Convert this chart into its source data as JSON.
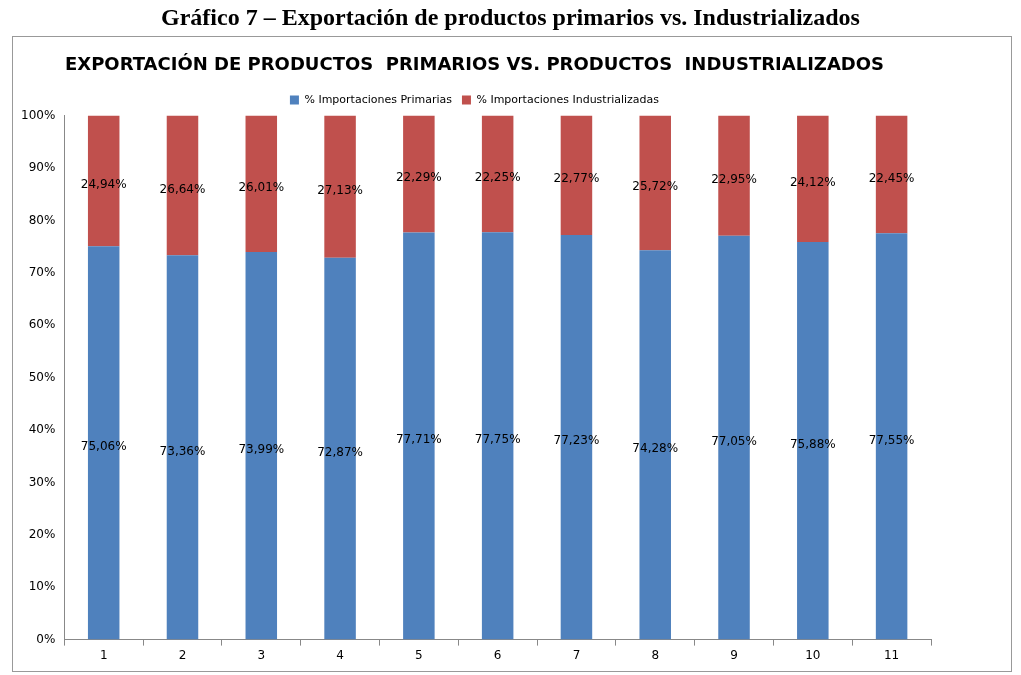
{
  "chart_data": {
    "type": "bar",
    "stacked": true,
    "title": "EXPORTACIÓN DE PRODUCTOS  PRIMARIOS VS. PRODUCTOS  INDUSTRIALIZADOS",
    "annotations": [
      "Gráfico 7 – Exportación de productos primarios vs. Industrializados"
    ],
    "categories": [
      "1",
      "2",
      "3",
      "4",
      "5",
      "6",
      "7",
      "8",
      "9",
      "10",
      "11"
    ],
    "series": [
      {
        "name": "% Importaciones Primarias",
        "color": "#4f81bd",
        "values": [
          75.06,
          73.36,
          73.99,
          72.87,
          77.71,
          77.75,
          77.23,
          74.28,
          77.05,
          75.88,
          77.55
        ],
        "value_labels": [
          "75,06%",
          "73,36%",
          "73,99%",
          "72,87%",
          "77,71%",
          "77,75%",
          "77,23%",
          "74,28%",
          "77,05%",
          "75,88%",
          "77,55%"
        ]
      },
      {
        "name": "% Importaciones Industrializadas",
        "color": "#c0504d",
        "values": [
          24.94,
          26.64,
          26.01,
          27.13,
          22.29,
          22.25,
          22.77,
          25.72,
          22.95,
          24.12,
          22.45
        ],
        "value_labels": [
          "24,94%",
          "26,64%",
          "26,01%",
          "27,13%",
          "22,29%",
          "22,25%",
          "22,77%",
          "25,72%",
          "22,95%",
          "24,12%",
          "22,45%"
        ]
      }
    ],
    "ylim": [
      0,
      100
    ],
    "yticks": [
      {
        "value": 0,
        "label": "0%"
      },
      {
        "value": 10,
        "label": "10%"
      },
      {
        "value": 20,
        "label": "20%"
      },
      {
        "value": 30,
        "label": "30%"
      },
      {
        "value": 40,
        "label": "40%"
      },
      {
        "value": 50,
        "label": "50%"
      },
      {
        "value": 60,
        "label": "60%"
      },
      {
        "value": 70,
        "label": "70%"
      },
      {
        "value": 80,
        "label": "80%"
      },
      {
        "value": 90,
        "label": "90%"
      },
      {
        "value": 100,
        "label": "100%"
      }
    ],
    "grid": false,
    "legend": "top"
  }
}
